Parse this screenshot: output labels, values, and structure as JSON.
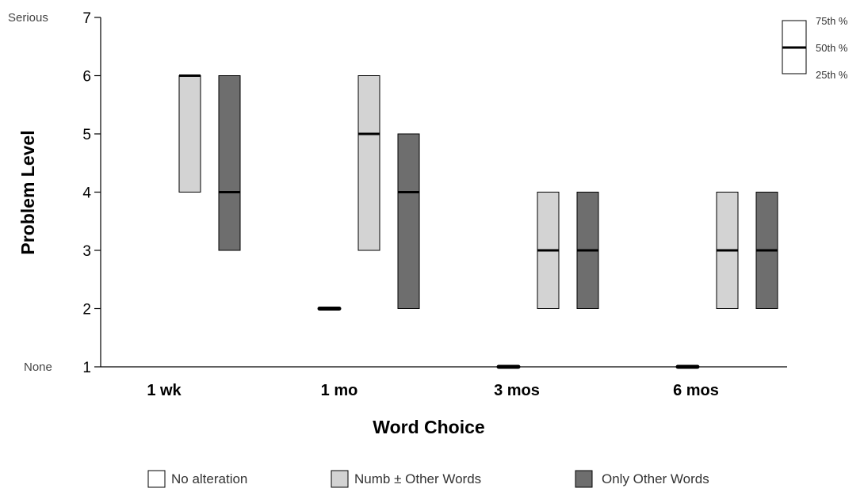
{
  "chart_data": {
    "type": "box",
    "xlabel": "Word Choice",
    "ylabel": "Problem Level",
    "ylim": [
      1,
      7
    ],
    "yticks": [
      1,
      2,
      3,
      4,
      5,
      6,
      7
    ],
    "ytick_text": {
      "top": "Serious",
      "bottom": "None"
    },
    "categories": [
      "1 wk",
      "1 mo",
      "3 mos",
      "6 mos"
    ],
    "series": [
      {
        "name": "No alteration",
        "color": "#ffffff",
        "boxes": [
          null,
          {
            "q1": 2,
            "median": 2,
            "q3": 2
          },
          {
            "q1": 1,
            "median": 1,
            "q3": 1
          },
          {
            "q1": 1,
            "median": 1,
            "q3": 1
          }
        ]
      },
      {
        "name": "Numb ± Other Words",
        "color": "#d3d3d3",
        "boxes": [
          {
            "q1": 4,
            "median": 6,
            "q3": 6
          },
          {
            "q1": 3,
            "median": 5,
            "q3": 6
          },
          {
            "q1": 2,
            "median": 3,
            "q3": 4
          },
          {
            "q1": 2,
            "median": 3,
            "q3": 4
          }
        ]
      },
      {
        "name": "Only Other Words",
        "color": "#6e6e6e",
        "boxes": [
          {
            "q1": 3,
            "median": 4,
            "q3": 6
          },
          {
            "q1": 2,
            "median": 4,
            "q3": 5
          },
          {
            "q1": 2,
            "median": 3,
            "q3": 4
          },
          {
            "q1": 2,
            "median": 3,
            "q3": 4
          }
        ]
      }
    ],
    "key": {
      "labels": [
        "75th %",
        "50th %",
        "25th %"
      ]
    },
    "legend_position": "bottom"
  }
}
